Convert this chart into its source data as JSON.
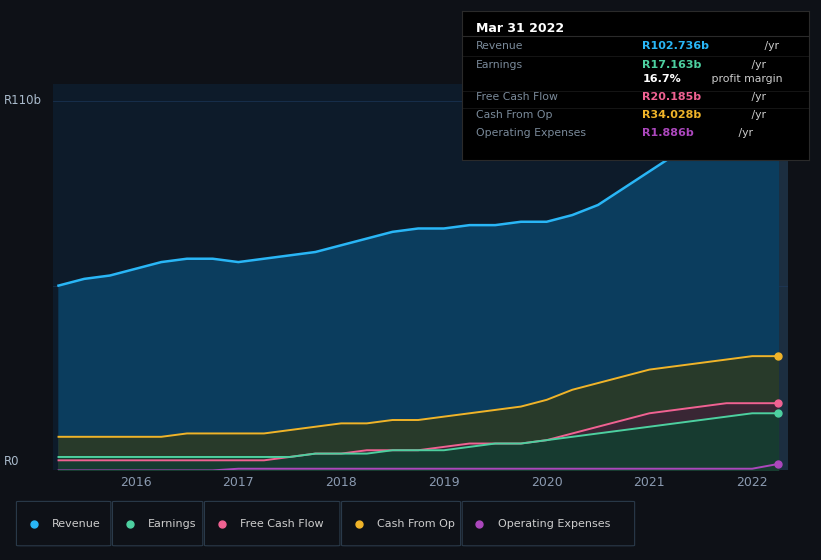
{
  "bg_color": "#0e1117",
  "plot_bg_color": "#0d1b2a",
  "highlight_bg": "#1c2e40",
  "grid_color": "#1e3a5f",
  "title_label": "R110b",
  "zero_label": "R0",
  "years": [
    2015.25,
    2015.5,
    2015.75,
    2016.0,
    2016.25,
    2016.5,
    2016.75,
    2017.0,
    2017.25,
    2017.5,
    2017.75,
    2018.0,
    2018.25,
    2018.5,
    2018.75,
    2019.0,
    2019.25,
    2019.5,
    2019.75,
    2020.0,
    2020.25,
    2020.5,
    2020.75,
    2021.0,
    2021.25,
    2021.5,
    2021.75,
    2022.0,
    2022.25
  ],
  "revenue": [
    55,
    57,
    58,
    60,
    62,
    63,
    63,
    62,
    63,
    64,
    65,
    67,
    69,
    71,
    72,
    72,
    73,
    73,
    74,
    74,
    76,
    79,
    84,
    89,
    94,
    97,
    100,
    102,
    103
  ],
  "earnings": [
    4,
    4,
    4,
    4,
    4,
    4,
    4,
    4,
    4,
    4,
    5,
    5,
    5,
    6,
    6,
    6,
    7,
    8,
    8,
    9,
    10,
    11,
    12,
    13,
    14,
    15,
    16,
    17,
    17
  ],
  "free_cash_flow": [
    3,
    3,
    3,
    3,
    3,
    3,
    3,
    3,
    3,
    4,
    5,
    5,
    6,
    6,
    6,
    7,
    8,
    8,
    8,
    9,
    11,
    13,
    15,
    17,
    18,
    19,
    20,
    20,
    20
  ],
  "cash_from_op": [
    10,
    10,
    10,
    10,
    10,
    11,
    11,
    11,
    11,
    12,
    13,
    14,
    14,
    15,
    15,
    16,
    17,
    18,
    19,
    21,
    24,
    26,
    28,
    30,
    31,
    32,
    33,
    34,
    34
  ],
  "op_expenses": [
    0,
    0,
    0,
    0,
    0,
    0,
    0,
    0.5,
    0.5,
    0.5,
    0.5,
    0.5,
    0.5,
    0.5,
    0.5,
    0.5,
    0.5,
    0.5,
    0.5,
    0.5,
    0.5,
    0.5,
    0.5,
    0.5,
    0.5,
    0.5,
    0.5,
    0.5,
    1.9
  ],
  "revenue_color": "#29b6f6",
  "earnings_color": "#4dd0a0",
  "free_cash_flow_color": "#f06292",
  "cash_from_op_color": "#f0b429",
  "op_expenses_color": "#ab47bc",
  "highlight_x_start": 2021.75,
  "highlight_x_end": 2022.35,
  "tooltip_title": "Mar 31 2022",
  "tooltip_rows": [
    {
      "label": "Revenue",
      "value": "R102.736b",
      "unit": " /yr",
      "color": "#29b6f6",
      "separator": true
    },
    {
      "label": "Earnings",
      "value": "R17.163b",
      "unit": " /yr",
      "color": "#4dd0a0",
      "separator": false
    },
    {
      "label": "",
      "value": "16.7%",
      "unit": " profit margin",
      "color": "#ffffff",
      "separator": true
    },
    {
      "label": "Free Cash Flow",
      "value": "R20.185b",
      "unit": " /yr",
      "color": "#f06292",
      "separator": true
    },
    {
      "label": "Cash From Op",
      "value": "R34.028b",
      "unit": " /yr",
      "color": "#f0b429",
      "separator": true
    },
    {
      "label": "Operating Expenses",
      "value": "R1.886b",
      "unit": " /yr",
      "color": "#ab47bc",
      "separator": false
    }
  ],
  "legend_items": [
    {
      "label": "Revenue",
      "color": "#29b6f6"
    },
    {
      "label": "Earnings",
      "color": "#4dd0a0"
    },
    {
      "label": "Free Cash Flow",
      "color": "#f06292"
    },
    {
      "label": "Cash From Op",
      "color": "#f0b429"
    },
    {
      "label": "Operating Expenses",
      "color": "#ab47bc"
    }
  ],
  "xlim": [
    2015.2,
    2022.35
  ],
  "ylim": [
    0,
    115
  ],
  "xticks": [
    2016,
    2017,
    2018,
    2019,
    2020,
    2021,
    2022
  ]
}
